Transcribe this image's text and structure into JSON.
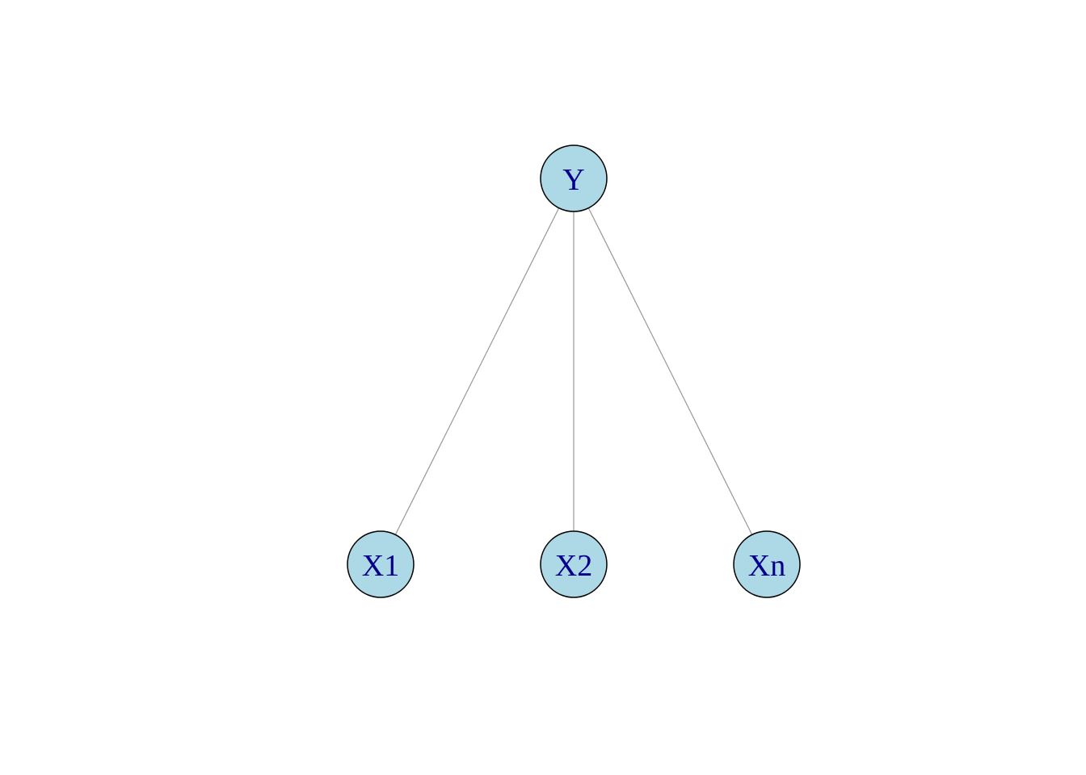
{
  "graph": {
    "node_fill": "#add8e6",
    "node_stroke": "#000000",
    "label_color": "#00008b",
    "edge_color": "#a0a0a0",
    "nodes": [
      {
        "id": "Y",
        "label": "Y"
      },
      {
        "id": "X1",
        "label": "X1"
      },
      {
        "id": "X2",
        "label": "X2"
      },
      {
        "id": "Xn",
        "label": "Xn"
      }
    ],
    "edges": [
      {
        "from": "Y",
        "to": "X1"
      },
      {
        "from": "Y",
        "to": "X2"
      },
      {
        "from": "Y",
        "to": "Xn"
      }
    ]
  }
}
